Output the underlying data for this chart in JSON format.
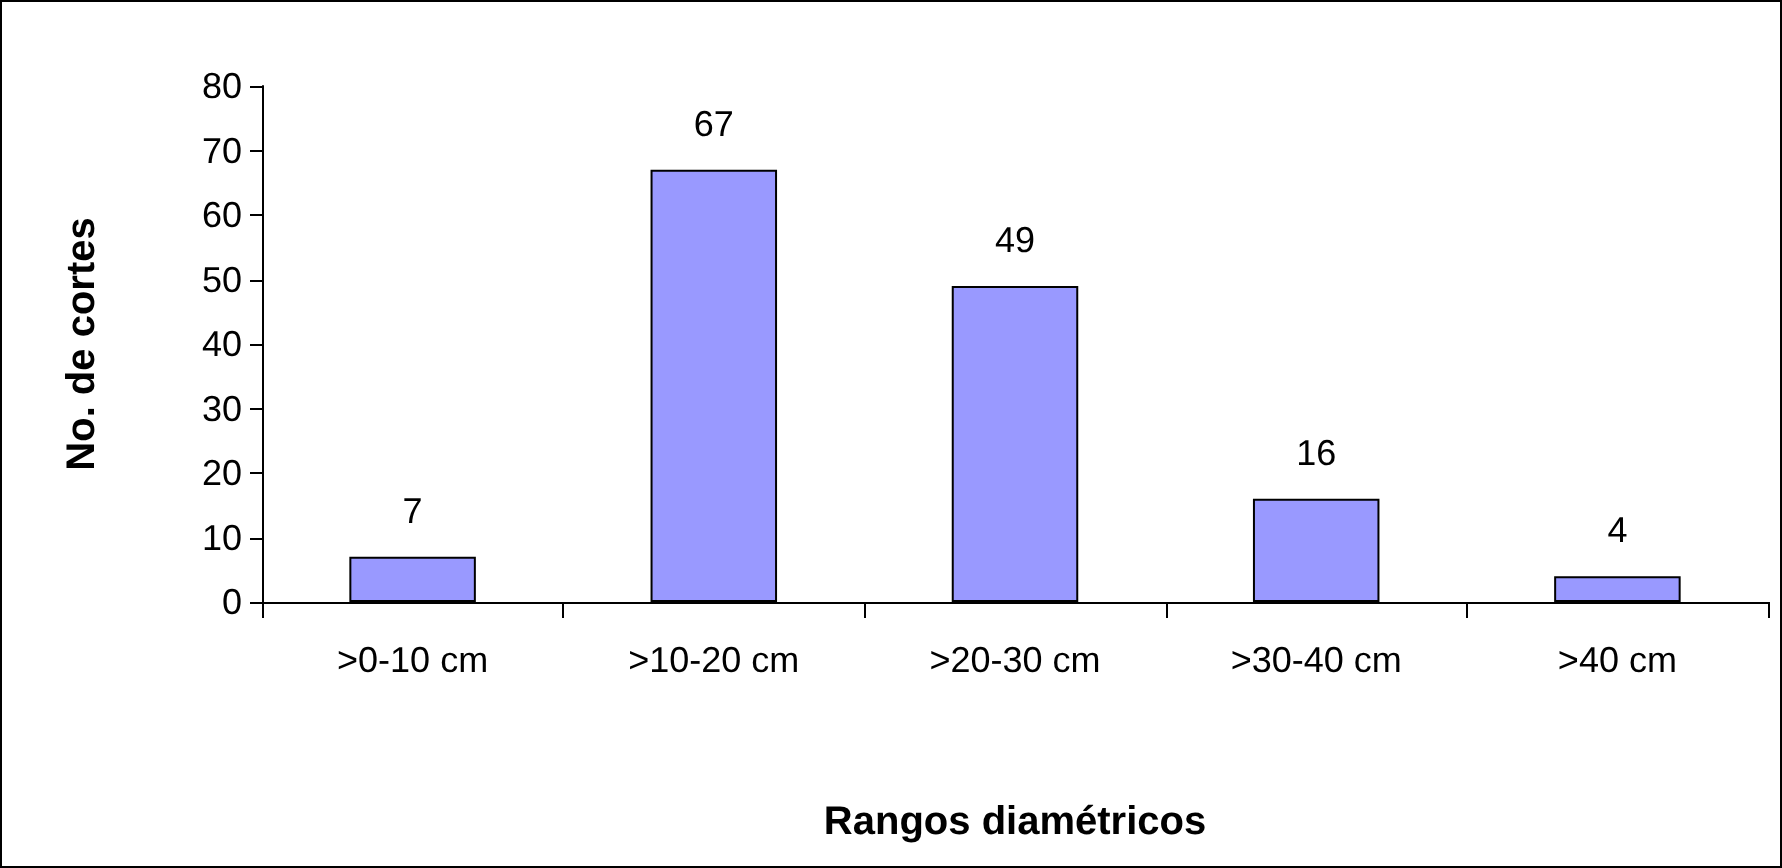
{
  "chart_data": {
    "type": "bar",
    "xlabel": "Rangos diamétricos",
    "ylabel": "No. de cortes",
    "categories": [
      ">0-10 cm",
      ">10-20 cm",
      ">20-30 cm",
      ">30-40 cm",
      ">40 cm"
    ],
    "values": [
      7,
      67,
      49,
      16,
      4
    ],
    "color": "#9999ff",
    "ylim": [
      0,
      80
    ],
    "yticks": [
      0,
      10,
      20,
      30,
      40,
      50,
      60,
      70,
      80
    ],
    "grid": false,
    "data_labels": true
  }
}
